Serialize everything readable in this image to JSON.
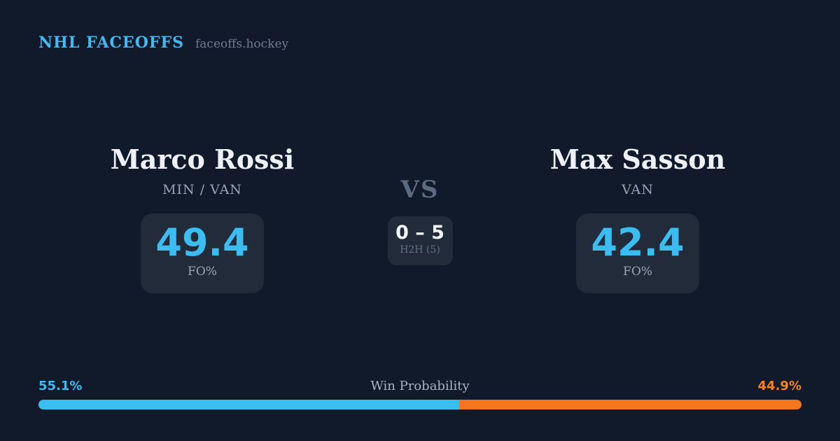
{
  "header": {
    "brand": "NHL FACEOFFS",
    "site": "faceoffs.hockey"
  },
  "matchup": {
    "player_left": {
      "name": "Marco Rossi",
      "team": "MIN / VAN",
      "stat_value": "49.4",
      "stat_label": "FO%"
    },
    "player_right": {
      "name": "Max Sasson",
      "team": "VAN",
      "stat_value": "42.4",
      "stat_label": "FO%"
    },
    "vs_label": "VS",
    "h2h": {
      "score": "0 – 5",
      "label": "H2H (5)"
    }
  },
  "win_probability": {
    "title": "Win Probability",
    "left_pct_label": "55.1%",
    "right_pct_label": "44.9%",
    "left_value": 55.1,
    "right_value": 44.9
  },
  "colors": {
    "background": "#101a2b",
    "card": "#212b3a",
    "accent_blue": "#3cbdf2",
    "accent_orange": "#f8761b",
    "brand_blue": "#45b7ee",
    "name_white": "#eef2f8",
    "muted_gray": "#97a3b6"
  }
}
